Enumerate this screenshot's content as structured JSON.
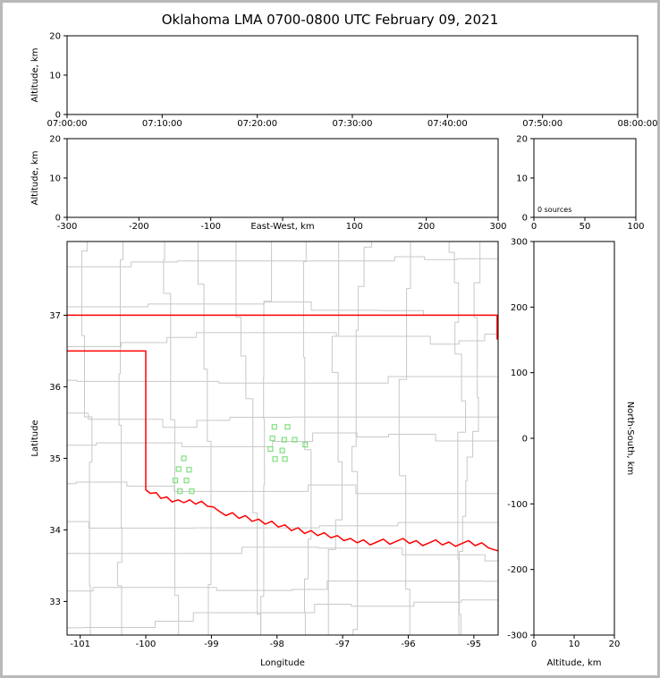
{
  "figure": {
    "title": "Oklahoma LMA 0700-0800 UTC February 09, 2021",
    "background": "#ffffff",
    "frame_color": "#b9b9b9"
  },
  "colors": {
    "axis": "#000000",
    "county_line": "#c8c8c8",
    "state_border": "#ff0000",
    "station_stroke": "#7fe07f",
    "station_fill": "none"
  },
  "chart_data": [
    {
      "id": "time-height",
      "type": "scatter",
      "ylabel": "Altitude, km",
      "x_tick_labels": [
        "07:00:00",
        "07:10:00",
        "07:20:00",
        "07:30:00",
        "07:40:00",
        "07:50:00",
        "08:00:00"
      ],
      "ylim": [
        0,
        20
      ],
      "y_ticks": [
        0,
        10,
        20
      ],
      "points": []
    },
    {
      "id": "ew-height",
      "type": "scatter",
      "xlabel": "East-West, km",
      "ylabel": "Altitude, km",
      "xlim": [
        -300,
        300
      ],
      "x_ticks": [
        -300,
        -200,
        -100,
        0,
        100,
        200,
        300
      ],
      "x_tick_labels": [
        "-300",
        "-200",
        "-100",
        "",
        "100",
        "200",
        "300"
      ],
      "ylim": [
        0,
        20
      ],
      "y_ticks": [
        0,
        10,
        20
      ],
      "points": []
    },
    {
      "id": "altitude-histogram",
      "type": "line",
      "annotation": "0 sources",
      "xlim": [
        0,
        100
      ],
      "x_ticks": [
        0,
        50,
        100
      ],
      "ylim": [
        0,
        20
      ],
      "y_ticks": [
        0,
        10,
        20
      ],
      "values": []
    },
    {
      "id": "plan-view-map",
      "type": "scatter",
      "xlabel": "Longitude",
      "ylabel": "Latitude",
      "xlim": [
        -101.2,
        -94.63
      ],
      "x_ticks": [
        -101,
        -100,
        -99,
        -98,
        -97,
        -96,
        -95
      ],
      "ylim": [
        32.53,
        38.03
      ],
      "y_ticks": [
        37,
        36,
        35,
        34,
        33
      ],
      "points": [],
      "stations_lon_lat": [
        [
          -98.04,
          35.44
        ],
        [
          -97.84,
          35.44
        ],
        [
          -98.07,
          35.28
        ],
        [
          -97.89,
          35.26
        ],
        [
          -97.73,
          35.26
        ],
        [
          -98.1,
          35.13
        ],
        [
          -97.92,
          35.11
        ],
        [
          -98.03,
          34.99
        ],
        [
          -97.88,
          34.99
        ],
        [
          -97.57,
          35.19
        ],
        [
          -99.42,
          35.0
        ],
        [
          -99.5,
          34.85
        ],
        [
          -99.34,
          34.84
        ],
        [
          -99.55,
          34.69
        ],
        [
          -99.38,
          34.69
        ],
        [
          -99.48,
          34.54
        ],
        [
          -99.3,
          34.54
        ]
      ],
      "border_north": [
        [
          -101.2,
          37.0
        ],
        [
          -94.6,
          37.0
        ]
      ],
      "border_northeast": [
        [
          -94.645,
          37.0
        ],
        [
          -94.645,
          36.66
        ]
      ],
      "border_west_south": [
        [
          -101.2,
          36.5
        ],
        [
          -100.0,
          36.5
        ],
        [
          -100.0,
          34.56
        ],
        [
          -99.93,
          34.51
        ],
        [
          -99.84,
          34.52
        ],
        [
          -99.77,
          34.44
        ],
        [
          -99.68,
          34.46
        ],
        [
          -99.6,
          34.39
        ],
        [
          -99.51,
          34.42
        ],
        [
          -99.42,
          34.38
        ],
        [
          -99.33,
          34.42
        ],
        [
          -99.24,
          34.36
        ],
        [
          -99.15,
          34.4
        ],
        [
          -99.06,
          34.33
        ],
        [
          -98.97,
          34.32
        ],
        [
          -98.88,
          34.26
        ],
        [
          -98.78,
          34.2
        ],
        [
          -98.68,
          34.24
        ],
        [
          -98.58,
          34.16
        ],
        [
          -98.48,
          34.2
        ],
        [
          -98.38,
          34.12
        ],
        [
          -98.28,
          34.15
        ],
        [
          -98.18,
          34.08
        ],
        [
          -98.08,
          34.12
        ],
        [
          -97.98,
          34.04
        ],
        [
          -97.88,
          34.07
        ],
        [
          -97.78,
          33.99
        ],
        [
          -97.68,
          34.03
        ],
        [
          -97.58,
          33.95
        ],
        [
          -97.48,
          33.99
        ],
        [
          -97.38,
          33.92
        ],
        [
          -97.28,
          33.96
        ],
        [
          -97.18,
          33.89
        ],
        [
          -97.08,
          33.92
        ],
        [
          -96.98,
          33.85
        ],
        [
          -96.88,
          33.88
        ],
        [
          -96.78,
          33.82
        ],
        [
          -96.68,
          33.86
        ],
        [
          -96.58,
          33.79
        ],
        [
          -96.48,
          33.83
        ],
        [
          -96.38,
          33.87
        ],
        [
          -96.28,
          33.8
        ],
        [
          -96.18,
          33.84
        ],
        [
          -96.08,
          33.88
        ],
        [
          -95.98,
          33.81
        ],
        [
          -95.88,
          33.85
        ],
        [
          -95.78,
          33.78
        ],
        [
          -95.68,
          33.82
        ],
        [
          -95.58,
          33.86
        ],
        [
          -95.48,
          33.79
        ],
        [
          -95.38,
          33.83
        ],
        [
          -95.28,
          33.77
        ],
        [
          -95.18,
          33.81
        ],
        [
          -95.08,
          33.85
        ],
        [
          -94.98,
          33.78
        ],
        [
          -94.88,
          33.82
        ],
        [
          -94.78,
          33.75
        ],
        [
          -94.68,
          33.72
        ],
        [
          -94.6,
          33.7
        ]
      ],
      "county_grid": {
        "seed": 20210209,
        "v_spacing": 0.46,
        "h_spacing": 0.42,
        "jog": 0.24
      }
    },
    {
      "id": "ns-height",
      "type": "scatter",
      "xlabel": "Altitude, km",
      "ylabel_right": "North-South, km",
      "xlim": [
        0,
        20
      ],
      "x_ticks": [
        0,
        10,
        20
      ],
      "ylim": [
        -300,
        300
      ],
      "y_ticks": [
        300,
        200,
        100,
        0,
        -100,
        -200,
        -300
      ],
      "points": []
    }
  ]
}
